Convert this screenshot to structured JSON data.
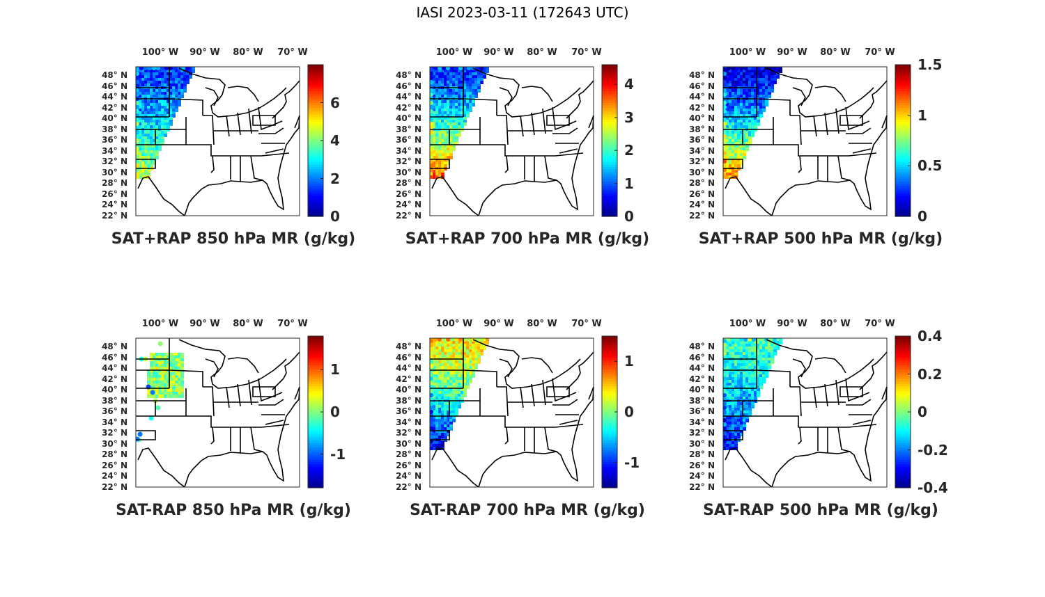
{
  "figure": {
    "suptitle": "IASI 2023-03-11 (172643 UTC)",
    "colormap": [
      "#00008f",
      "#0000ff",
      "#0080ff",
      "#00ffff",
      "#80ff80",
      "#ffff00",
      "#ff8000",
      "#ff0000",
      "#800000"
    ],
    "map_color": "#000000"
  },
  "chart_data": [
    {
      "type": "heatmap",
      "title": "SAT+RAP 850 hPa MR (g/kg)",
      "variable": "850 hPa mixing ratio",
      "units": "g/kg",
      "clim": [
        0,
        8
      ],
      "colorbar_ticks": [
        0,
        2,
        4,
        6
      ],
      "colorbar_tick_labels": [
        "0",
        "2",
        "4",
        "6"
      ],
      "colorbar_font": 20,
      "lon_ticks": [
        "100° W",
        "90° W",
        "80° W",
        "70° W"
      ],
      "lat_ticks": [
        "48° N",
        "46° N",
        "44° N",
        "42° N",
        "40° N",
        "38° N",
        "36° N",
        "34° N",
        "32° N",
        "30° N",
        "28° N",
        "26° N",
        "24° N",
        "22° N"
      ],
      "swath": "diagonal",
      "regions": [
        {
          "area": "north",
          "value": 1.5
        },
        {
          "area": "south",
          "value": 4.8
        }
      ]
    },
    {
      "type": "heatmap",
      "title": "SAT+RAP 700 hPa MR (g/kg)",
      "variable": "700 hPa mixing ratio",
      "units": "g/kg",
      "clim": [
        0,
        4.6
      ],
      "colorbar_ticks": [
        0,
        1,
        2,
        3,
        4
      ],
      "colorbar_tick_labels": [
        "0",
        "1",
        "2",
        "3",
        "4"
      ],
      "colorbar_font": 20,
      "lon_ticks": [
        "100° W",
        "90° W",
        "80° W",
        "70° W"
      ],
      "lat_ticks": [
        "48° N",
        "46° N",
        "44° N",
        "42° N",
        "40° N",
        "38° N",
        "36° N",
        "34° N",
        "32° N",
        "30° N",
        "28° N",
        "26° N",
        "24° N",
        "22° N"
      ],
      "swath": "diagonal",
      "regions": [
        {
          "area": "north",
          "value": 0.8
        },
        {
          "area": "south",
          "value": 3.7
        }
      ]
    },
    {
      "type": "heatmap",
      "title": "SAT+RAP 500 hPa MR (g/kg)",
      "variable": "500 hPa mixing ratio",
      "units": "g/kg",
      "clim": [
        0,
        1.5
      ],
      "colorbar_ticks": [
        0,
        0.5,
        1,
        1.5
      ],
      "colorbar_tick_labels": [
        "0",
        "0.5",
        "1",
        "1.5"
      ],
      "colorbar_font": 20,
      "lon_ticks": [
        "100° W",
        "90° W",
        "80° W",
        "70° W"
      ],
      "lat_ticks": [
        "48° N",
        "46° N",
        "44° N",
        "42° N",
        "40° N",
        "38° N",
        "36° N",
        "34° N",
        "32° N",
        "30° N",
        "28° N",
        "26° N",
        "24° N",
        "22° N"
      ],
      "swath": "diagonal",
      "regions": [
        {
          "area": "north",
          "value": 0.15
        },
        {
          "area": "south",
          "value": 1.15
        }
      ]
    },
    {
      "type": "heatmap",
      "title": "SAT-RAP 850 hPa MR (g/kg)",
      "variable": "850 hPa mixing ratio difference",
      "units": "g/kg",
      "clim": [
        -1.8,
        1.8
      ],
      "colorbar_ticks": [
        -1,
        0,
        1
      ],
      "colorbar_tick_labels": [
        "-1",
        "0",
        "1"
      ],
      "colorbar_font": 20,
      "lon_ticks": [
        "100° W",
        "90° W",
        "80° W",
        "70° W"
      ],
      "lat_ticks": [
        "48° N",
        "46° N",
        "44° N",
        "42° N",
        "40° N",
        "38° N",
        "36° N",
        "34° N",
        "32° N",
        "30° N",
        "28° N",
        "26° N",
        "24° N",
        "22° N"
      ],
      "swath": "sparse",
      "regions": [
        {
          "area": "north",
          "value": 0.1
        },
        {
          "area": "south",
          "value": -1.5
        }
      ]
    },
    {
      "type": "heatmap",
      "title": "SAT-RAP 700 hPa MR (g/kg)",
      "variable": "700 hPa mixing ratio difference",
      "units": "g/kg",
      "clim": [
        -1.5,
        1.5
      ],
      "colorbar_ticks": [
        -1,
        0,
        1
      ],
      "colorbar_tick_labels": [
        "-1",
        "0",
        "1"
      ],
      "colorbar_font": 20,
      "lon_ticks": [
        "100° W",
        "90° W",
        "80° W",
        "70° W"
      ],
      "lat_ticks": [
        "48° N",
        "46° N",
        "44° N",
        "42° N",
        "40° N",
        "38° N",
        "36° N",
        "34° N",
        "32° N",
        "30° N",
        "28° N",
        "26° N",
        "24° N",
        "22° N"
      ],
      "swath": "diagonal",
      "regions": [
        {
          "area": "north",
          "value": 0.4
        },
        {
          "area": "south",
          "value": -1.3
        }
      ]
    },
    {
      "type": "heatmap",
      "title": "SAT-RAP 500 hPa MR (g/kg)",
      "variable": "500 hPa mixing ratio difference",
      "units": "g/kg",
      "clim": [
        -0.4,
        0.4
      ],
      "colorbar_ticks": [
        -0.4,
        -0.2,
        0,
        0.2,
        0.4
      ],
      "colorbar_tick_labels": [
        "-0.4",
        "-0.2",
        "0",
        "0.2",
        "0.4"
      ],
      "colorbar_font": 20,
      "lon_ticks": [
        "100° W",
        "90° W",
        "80° W",
        "70° W"
      ],
      "lat_ticks": [
        "48° N",
        "46° N",
        "44° N",
        "42° N",
        "40° N",
        "38° N",
        "36° N",
        "34° N",
        "32° N",
        "30° N",
        "28° N",
        "26° N",
        "24° N",
        "22° N"
      ],
      "swath": "diagonal",
      "regions": [
        {
          "area": "north",
          "value": -0.05
        },
        {
          "area": "south",
          "value": -0.3
        }
      ]
    }
  ]
}
